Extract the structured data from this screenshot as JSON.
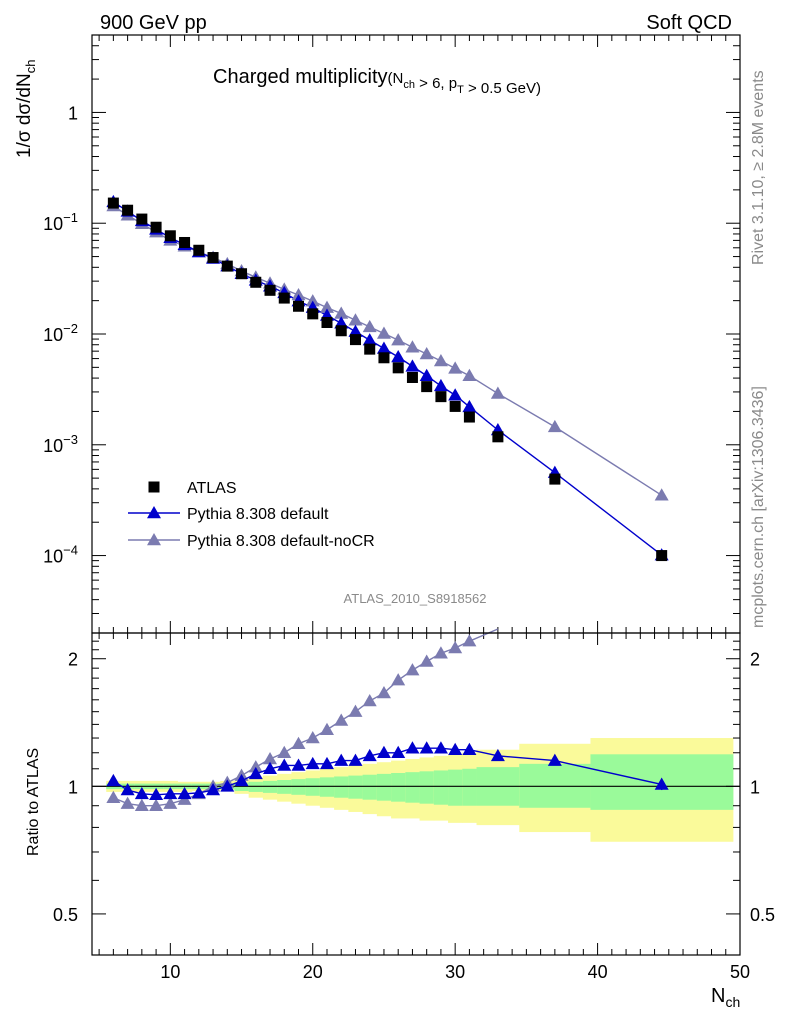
{
  "header": {
    "left": "900 GeV pp",
    "right": "Soft QCD"
  },
  "side": {
    "top": "Rivet 3.1.10, ≥ 2.8M events",
    "bottom": "mcplots.cern.ch [arXiv:1306.3436]"
  },
  "colors": {
    "data": "#000000",
    "default": "#0000cc",
    "nocr": "#7b7bb0",
    "band_green": "#9afa9a",
    "band_yellow": "#fafa9a"
  },
  "chart_data": {
    "type": "scatter",
    "title": "Charged multiplicity",
    "title_sub": "(N_ch > 6, p_T > 0.5 GeV)",
    "xlabel": "N_ch",
    "ylabel": "1/σ dσ/dN_ch",
    "ratio_ylabel": "Ratio to ATLAS",
    "watermark": "ATLAS_2010_S8918562",
    "xlim": [
      4.5,
      50
    ],
    "ylim": [
      2e-05,
      5
    ],
    "yscale": "log",
    "ratio_ylim": [
      0.4,
      2.3
    ],
    "ratio_yscale": "log",
    "x_ticks": [
      "10",
      "20",
      "30",
      "40",
      "50"
    ],
    "y_ticks": [
      "10^-4",
      "10^-3",
      "10^-2",
      "10^-1",
      "1"
    ],
    "ratio_ticks": [
      "0.5",
      "1",
      "2"
    ],
    "legend": [
      "ATLAS",
      "Pythia 8.308 default",
      "Pythia 8.308 default-noCR"
    ],
    "legend_position": "bottom-left",
    "x": [
      6,
      7,
      8,
      9,
      10,
      11,
      12,
      13,
      14,
      15,
      16,
      17,
      18,
      19,
      20,
      21,
      22,
      23,
      24,
      25,
      26,
      27,
      28,
      29,
      30,
      31,
      33,
      37,
      44.5
    ],
    "series": [
      {
        "name": "ATLAS",
        "marker": "square",
        "values": [
          0.152,
          0.131,
          0.109,
          0.092,
          0.077,
          0.067,
          0.057,
          0.049,
          0.041,
          0.035,
          0.0293,
          0.0248,
          0.0211,
          0.0178,
          0.0152,
          0.0127,
          0.0107,
          0.0089,
          0.0073,
          0.0061,
          0.00495,
          0.00405,
          0.00335,
          0.00272,
          0.00222,
          0.00178,
          0.00118,
          0.00049,
          0.0001
        ]
      },
      {
        "name": "Pythia 8.308 default",
        "marker": "triangle",
        "line": true,
        "values": [
          0.156,
          0.128,
          0.105,
          0.088,
          0.074,
          0.064,
          0.055,
          0.048,
          0.041,
          0.035,
          0.0305,
          0.027,
          0.0235,
          0.0198,
          0.0173,
          0.0147,
          0.0125,
          0.0105,
          0.0088,
          0.0074,
          0.0062,
          0.0051,
          0.0042,
          0.0034,
          0.0028,
          0.0022,
          0.00136,
          0.00056,
          0.000101
        ]
      },
      {
        "name": "Pythia 8.308 default-noCR",
        "marker": "triangle",
        "line": true,
        "values": [
          0.143,
          0.118,
          0.099,
          0.083,
          0.07,
          0.062,
          0.055,
          0.049,
          0.043,
          0.037,
          0.0325,
          0.0287,
          0.0253,
          0.0225,
          0.0198,
          0.0173,
          0.0153,
          0.0133,
          0.0116,
          0.0101,
          0.0088,
          0.0076,
          0.0066,
          0.0057,
          0.0049,
          0.0042,
          0.0029,
          0.00145,
          0.00035
        ]
      }
    ],
    "ratio_series": [
      {
        "name": "Pythia 8.308 default",
        "values": [
          1.03,
          0.98,
          0.96,
          0.955,
          0.96,
          0.96,
          0.965,
          0.98,
          1.0,
          1.03,
          1.07,
          1.1,
          1.12,
          1.12,
          1.13,
          1.13,
          1.15,
          1.15,
          1.18,
          1.2,
          1.2,
          1.23,
          1.23,
          1.23,
          1.22,
          1.22,
          1.18,
          1.15,
          1.01
        ]
      },
      {
        "name": "Pythia 8.308 default-noCR",
        "values": [
          0.94,
          0.91,
          0.9,
          0.9,
          0.91,
          0.93,
          0.96,
          1.0,
          1.02,
          1.06,
          1.11,
          1.16,
          1.2,
          1.26,
          1.3,
          1.36,
          1.43,
          1.5,
          1.59,
          1.66,
          1.78,
          1.88,
          1.97,
          2.06,
          2.12,
          2.2,
          2.35
        ]
      }
    ],
    "ratio_bands": {
      "edges": [
        5.5,
        6.5,
        7.5,
        8.5,
        9.5,
        10.5,
        11.5,
        12.5,
        13.5,
        14.5,
        15.5,
        16.5,
        17.5,
        18.5,
        19.5,
        20.5,
        21.5,
        22.5,
        23.5,
        24.5,
        25.5,
        26.5,
        27.5,
        28.5,
        29.5,
        30.5,
        31.5,
        34.5,
        39.5,
        49.5
      ],
      "green_lo": [
        0.985,
        0.985,
        0.985,
        0.985,
        0.985,
        0.985,
        0.985,
        0.985,
        0.985,
        0.975,
        0.97,
        0.965,
        0.96,
        0.955,
        0.95,
        0.945,
        0.94,
        0.935,
        0.93,
        0.925,
        0.92,
        0.915,
        0.91,
        0.905,
        0.9,
        0.9,
        0.9,
        0.89,
        0.88
      ],
      "green_hi": [
        1.015,
        1.015,
        1.015,
        1.015,
        1.015,
        1.015,
        1.015,
        1.015,
        1.015,
        1.02,
        1.025,
        1.03,
        1.035,
        1.04,
        1.045,
        1.05,
        1.055,
        1.06,
        1.065,
        1.07,
        1.075,
        1.08,
        1.085,
        1.09,
        1.095,
        1.1,
        1.11,
        1.13,
        1.19
      ],
      "yellow_lo": [
        0.97,
        0.97,
        0.97,
        0.97,
        0.97,
        0.97,
        0.975,
        0.975,
        0.98,
        0.96,
        0.94,
        0.93,
        0.92,
        0.91,
        0.9,
        0.89,
        0.88,
        0.87,
        0.86,
        0.85,
        0.84,
        0.84,
        0.83,
        0.83,
        0.82,
        0.82,
        0.81,
        0.78,
        0.74
      ],
      "yellow_hi": [
        1.03,
        1.03,
        1.03,
        1.03,
        1.03,
        1.025,
        1.025,
        1.025,
        1.03,
        1.04,
        1.05,
        1.06,
        1.07,
        1.08,
        1.09,
        1.1,
        1.11,
        1.12,
        1.13,
        1.14,
        1.15,
        1.16,
        1.17,
        1.18,
        1.19,
        1.2,
        1.22,
        1.26,
        1.3
      ]
    }
  }
}
